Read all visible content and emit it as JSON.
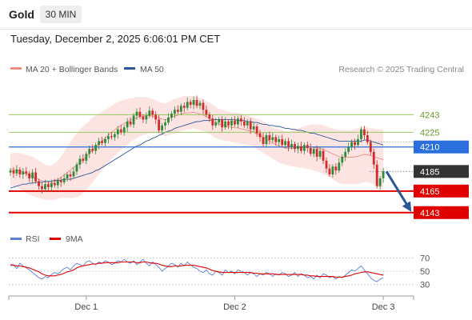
{
  "header": {
    "instrument": "Gold",
    "timeframe": "30 MIN"
  },
  "timestamp": "Tuesday, December 2, 2025 6:06:01 PM CET",
  "legend": {
    "bb": {
      "label": "MA 20 + Bollinger Bands",
      "color": "#f28b82"
    },
    "ma50": {
      "label": "MA 50",
      "color": "#2b5797"
    },
    "credit": "Research © 2025 Trading Central"
  },
  "rsi_legend": {
    "rsi": {
      "label": "RSI",
      "color": "#5b7fd6"
    },
    "ma9": {
      "label": "9MA",
      "color": "#e00000"
    }
  },
  "chart_data": [
    {
      "type": "candlestick",
      "ylim": [
        4133,
        4280
      ],
      "x_ticks": [
        {
          "label": "Dec 1",
          "bar": 24
        },
        {
          "label": "Dec 2",
          "bar": 71
        },
        {
          "label": "Dec 3",
          "bar": 118
        }
      ],
      "levels": [
        {
          "value": 4243,
          "label": "4243",
          "kind": "resistance",
          "color": "#8bc34a"
        },
        {
          "value": 4225,
          "label": "4225",
          "kind": "resistance",
          "color": "#8bc34a"
        },
        {
          "value": 4210,
          "label": "4210",
          "kind": "pivot",
          "color": "#2a6fdb"
        },
        {
          "value": 4185,
          "label": "4185",
          "kind": "last",
          "color": "#333333"
        },
        {
          "value": 4165,
          "label": "4165",
          "kind": "support",
          "color": "#e00000"
        },
        {
          "value": 4143,
          "label": "4143",
          "kind": "support",
          "color": "#e00000"
        }
      ],
      "projection": {
        "from": 4185,
        "to": 4148
      },
      "closes": [
        4186,
        4183,
        4187,
        4182,
        4185,
        4183,
        4178,
        4184,
        4175,
        4170,
        4167,
        4172,
        4169,
        4173,
        4171,
        4176,
        4174,
        4178,
        4182,
        4180,
        4185,
        4192,
        4198,
        4196,
        4203,
        4208,
        4206,
        4212,
        4216,
        4214,
        4218,
        4221,
        4220,
        4223,
        4228,
        4225,
        4230,
        4236,
        4233,
        4242,
        4246,
        4241,
        4238,
        4242,
        4247,
        4243,
        4238,
        4227,
        4232,
        4235,
        4240,
        4244,
        4248,
        4246,
        4252,
        4250,
        4256,
        4253,
        4258,
        4252,
        4255,
        4248,
        4243,
        4239,
        4232,
        4235,
        4238,
        4230,
        4236,
        4232,
        4237,
        4233,
        4239,
        4236,
        4232,
        4236,
        4228,
        4231,
        4224,
        4220,
        4213,
        4222,
        4217,
        4220,
        4215,
        4218,
        4212,
        4216,
        4210,
        4213,
        4208,
        4211,
        4206,
        4212,
        4209,
        4203,
        4208,
        4200,
        4206,
        4196,
        4188,
        4182,
        4190,
        4186,
        4194,
        4200,
        4205,
        4210,
        4215,
        4212,
        4218,
        4228,
        4222,
        4215,
        4205,
        4192,
        4170,
        4178,
        4185
      ],
      "bb_upper": [
        4203,
        4204,
        4204,
        4204,
        4203,
        4202,
        4201,
        4200,
        4198,
        4196,
        4194,
        4192,
        4191,
        4191,
        4193,
        4196,
        4200,
        4205,
        4210,
        4215,
        4220,
        4224,
        4228,
        4231,
        4234,
        4237,
        4240,
        4242,
        4244,
        4246,
        4248,
        4250,
        4252,
        4254,
        4256,
        4257,
        4258,
        4259,
        4260,
        4260,
        4261,
        4261,
        4261,
        4261,
        4260,
        4259,
        4258,
        4256,
        4255,
        4254,
        4256,
        4258,
        4259,
        4260,
        4261,
        4262,
        4262,
        4262,
        4262,
        4261,
        4260,
        4259,
        4257,
        4255,
        4253,
        4251,
        4249,
        4248,
        4247,
        4246,
        4245,
        4245,
        4245,
        4244,
        4243,
        4242,
        4241,
        4240,
        4239,
        4238,
        4236,
        4234,
        4232,
        4230,
        4229,
        4228,
        4227,
        4226,
        4226,
        4227,
        4228,
        4229,
        4230,
        4231,
        4232,
        4233,
        4233,
        4233,
        4233,
        4232,
        4231,
        4230,
        4229,
        4228,
        4227,
        4227,
        4227,
        4227,
        4227,
        4228,
        4229,
        4230,
        4231,
        4230,
        4229,
        4229,
        4228,
        4228,
        4227
      ],
      "bb_lower": [
        4171,
        4170,
        4169,
        4167,
        4165,
        4163,
        4161,
        4160,
        4159,
        4158,
        4157,
        4156,
        4156,
        4156,
        4156,
        4157,
        4158,
        4158,
        4158,
        4158,
        4158,
        4159,
        4160,
        4163,
        4166,
        4170,
        4174,
        4178,
        4182,
        4186,
        4190,
        4194,
        4198,
        4201,
        4204,
        4207,
        4210,
        4212,
        4215,
        4217,
        4219,
        4221,
        4222,
        4223,
        4224,
        4224,
        4224,
        4223,
        4222,
        4221,
        4222,
        4223,
        4224,
        4225,
        4226,
        4227,
        4228,
        4228,
        4229,
        4228,
        4227,
        4226,
        4225,
        4223,
        4221,
        4219,
        4218,
        4217,
        4216,
        4216,
        4215,
        4214,
        4214,
        4213,
        4213,
        4212,
        4211,
        4210,
        4208,
        4206,
        4204,
        4202,
        4200,
        4198,
        4196,
        4194,
        4193,
        4192,
        4191,
        4190,
        4190,
        4189,
        4189,
        4188,
        4188,
        4187,
        4186,
        4185,
        4184,
        4183,
        4181,
        4179,
        4177,
        4175,
        4173,
        4172,
        4172,
        4172,
        4172,
        4172,
        4172,
        4173,
        4174,
        4174,
        4173,
        4172,
        4170,
        4168,
        4167
      ],
      "ma50": [
        4168,
        4169,
        4170,
        4171,
        4172,
        4172,
        4173,
        4173,
        4174,
        4174,
        4174,
        4175,
        4175,
        4175,
        4176,
        4176,
        4176,
        4177,
        4177,
        4177,
        4178,
        4179,
        4180,
        4181,
        4182,
        4183,
        4184,
        4186,
        4187,
        4189,
        4191,
        4193,
        4195,
        4197,
        4199,
        4201,
        4203,
        4205,
        4207,
        4209,
        4211,
        4212,
        4214,
        4216,
        4217,
        4219,
        4220,
        4222,
        4223,
        4225,
        4226,
        4227,
        4229,
        4230,
        4231,
        4232,
        4233,
        4234,
        4235,
        4236,
        4236,
        4237,
        4237,
        4237,
        4238,
        4238,
        4238,
        4238,
        4238,
        4238,
        4238,
        4238,
        4237,
        4237,
        4237,
        4236,
        4236,
        4235,
        4235,
        4234,
        4233,
        4233,
        4232,
        4232,
        4231,
        4231,
        4230,
        4229,
        4229,
        4228,
        4228,
        4227,
        4227,
        4226,
        4225,
        4224,
        4224,
        4223,
        4222,
        4221,
        4220,
        4219,
        4218,
        4217,
        4216,
        4216,
        4216,
        4216,
        4216,
        4216,
        4216,
        4216,
        4217,
        4217,
        4216,
        4215,
        4214,
        4213,
        4212
      ]
    },
    {
      "type": "line",
      "title": "RSI",
      "ylim": [
        22,
        78
      ],
      "y_ticks": [
        70,
        50,
        30
      ],
      "series": [
        {
          "name": "RSI",
          "values": [
            58,
            60,
            54,
            62,
            58,
            55,
            52,
            48,
            44,
            40,
            38,
            42,
            40,
            45,
            48,
            46,
            50,
            54,
            56,
            52,
            58,
            62,
            60,
            58,
            64,
            66,
            62,
            60,
            64,
            62,
            66,
            64,
            60,
            62,
            66,
            64,
            68,
            64,
            62,
            66,
            60,
            64,
            68,
            62,
            58,
            64,
            60,
            56,
            50,
            54,
            58,
            62,
            60,
            56,
            62,
            58,
            64,
            60,
            56,
            54,
            50,
            48,
            52,
            46,
            44,
            50,
            48,
            44,
            52,
            48,
            50,
            46,
            52,
            50,
            48,
            44,
            48,
            46,
            42,
            46,
            44,
            48,
            46,
            42,
            46,
            44,
            48,
            46,
            42,
            44,
            48,
            42,
            46,
            44,
            40,
            42,
            38,
            44,
            40,
            46,
            44,
            40,
            42,
            38,
            42,
            40,
            44,
            48,
            52,
            50,
            54,
            58,
            52,
            46,
            40,
            36,
            34,
            38,
            40
          ]
        },
        {
          "name": "9MA",
          "values": [
            60,
            59,
            58,
            58,
            57,
            56,
            55,
            53,
            51,
            49,
            46,
            44,
            43,
            43,
            43,
            44,
            45,
            47,
            49,
            50,
            52,
            55,
            57,
            58,
            59,
            60,
            61,
            61,
            62,
            62,
            63,
            63,
            63,
            63,
            63,
            64,
            64,
            64,
            64,
            64,
            63,
            63,
            64,
            64,
            63,
            62,
            62,
            61,
            59,
            58,
            57,
            57,
            58,
            58,
            58,
            59,
            59,
            59,
            59,
            58,
            57,
            56,
            55,
            53,
            51,
            50,
            49,
            48,
            48,
            48,
            48,
            48,
            48,
            48,
            48,
            48,
            48,
            47,
            47,
            46,
            46,
            46,
            46,
            46,
            45,
            45,
            45,
            45,
            45,
            45,
            45,
            45,
            45,
            44,
            44,
            43,
            43,
            42,
            42,
            42,
            42,
            42,
            42,
            41,
            41,
            41,
            42,
            43,
            44,
            46,
            47,
            48,
            49,
            49,
            48,
            47,
            46,
            45,
            44
          ]
        }
      ]
    }
  ]
}
